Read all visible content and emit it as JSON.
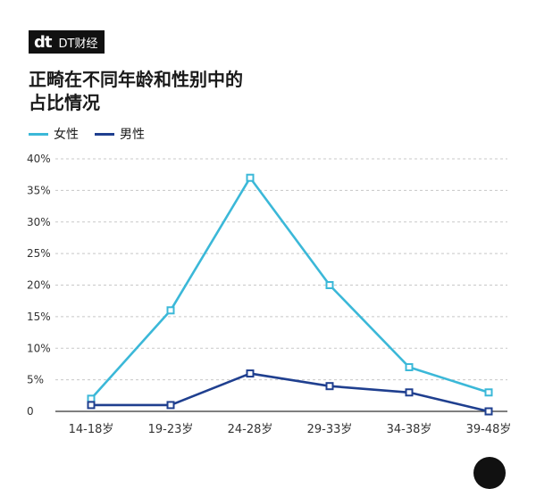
{
  "brand": {
    "mark": "dt",
    "name": "DT财经"
  },
  "title_line1": "正畸在不同年龄和性别中的",
  "title_line2": "占比情况",
  "colors": {
    "female": "#3bb8d8",
    "male": "#1f3f8f",
    "grid": "#c8c8c8"
  },
  "chart_data": {
    "type": "line",
    "title": "正畸在不同年龄和性别中的占比情况",
    "categories": [
      "14-18岁",
      "19-23岁",
      "24-28岁",
      "29-33岁",
      "34-38岁",
      "39-48岁"
    ],
    "series": [
      {
        "name": "女性",
        "values": [
          2,
          16,
          37,
          20,
          7,
          3
        ]
      },
      {
        "name": "男性",
        "values": [
          1,
          1,
          6,
          4,
          3,
          0
        ]
      }
    ],
    "ylim": [
      0,
      40
    ],
    "yticks": [
      "0",
      "5%",
      "10%",
      "15%",
      "20%",
      "25%",
      "30%",
      "35%",
      "40%"
    ],
    "grid": true,
    "legend": "top-left"
  }
}
